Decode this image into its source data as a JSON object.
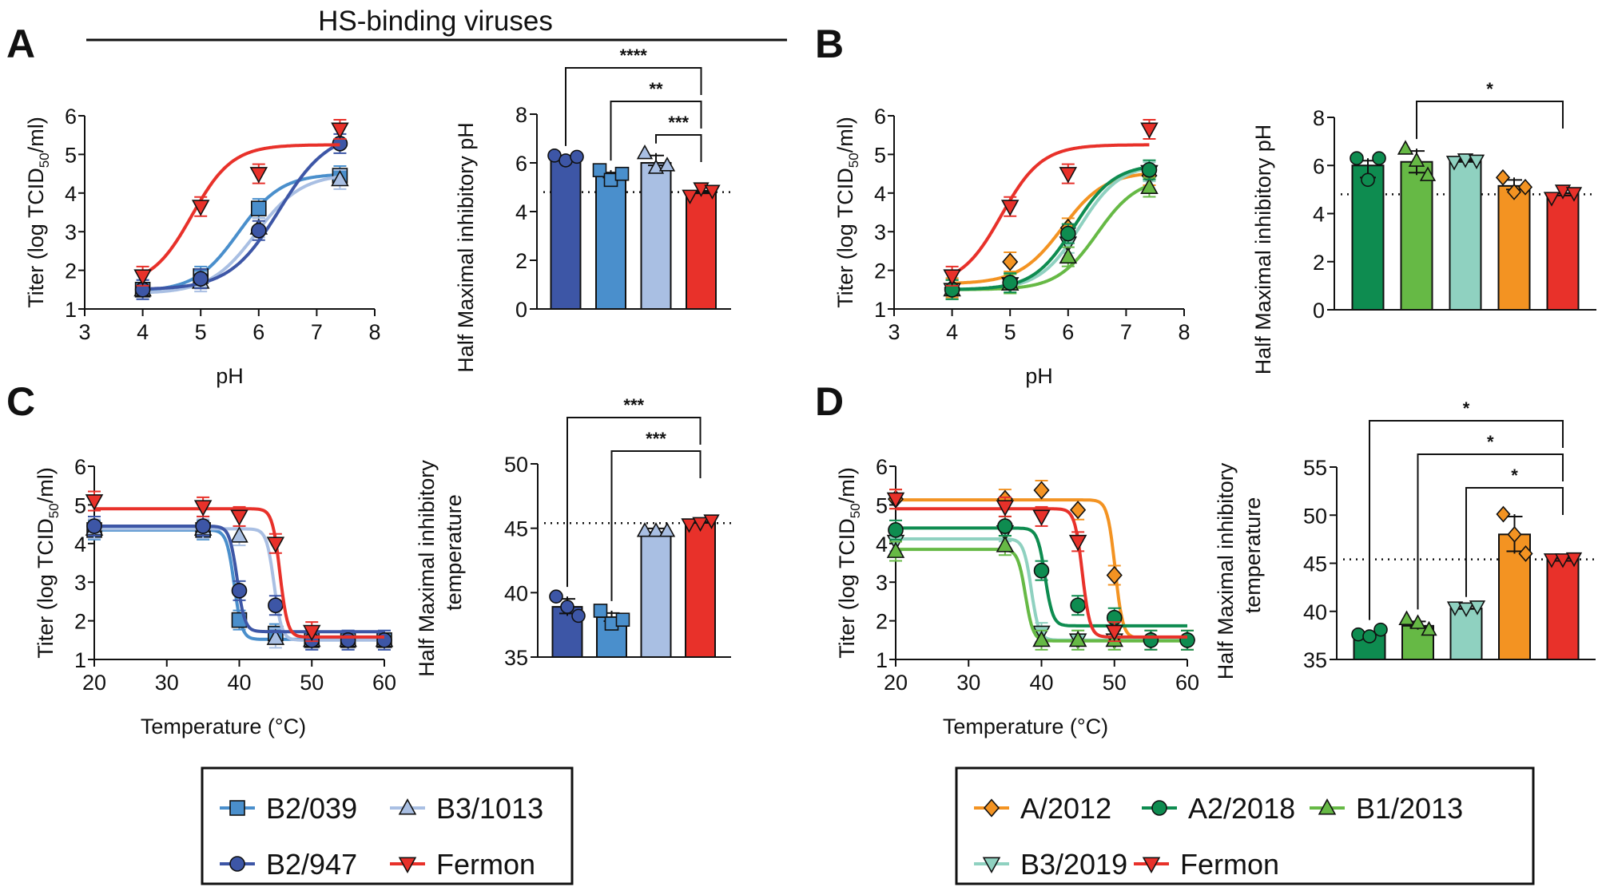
{
  "header": {
    "title": "HS-binding viruses"
  },
  "colors": {
    "B2/039": "#4a8fcc",
    "B3/1013": "#a9bfe3",
    "B2/947": "#3d56a6",
    "Fermon": "#e8312a",
    "A/2012": "#f39322",
    "A2/2018": "#0e8c50",
    "B1/2013": "#66b945",
    "B3/2019": "#8fd1c0"
  },
  "legends": {
    "left": [
      {
        "name": "B2/039",
        "marker": "square"
      },
      {
        "name": "B3/1013",
        "marker": "triangle-up"
      },
      {
        "name": "B2/947",
        "marker": "circle"
      },
      {
        "name": "Fermon",
        "marker": "triangle-down"
      }
    ],
    "right": [
      {
        "name": "A/2012",
        "marker": "diamond"
      },
      {
        "name": "A2/2018",
        "marker": "circle"
      },
      {
        "name": "B1/2013",
        "marker": "triangle-up"
      },
      {
        "name": "B3/2019",
        "marker": "triangle-down"
      },
      {
        "name": "Fermon",
        "marker": "triangle-down"
      }
    ]
  },
  "chart_data": [
    {
      "panel": "A",
      "id": "A-line",
      "type": "line",
      "xlabel": "pH",
      "ylabel": "Titer (log TCID50/ml)",
      "xlim": [
        3,
        8
      ],
      "ylim": [
        1,
        6
      ],
      "xticks": [
        3,
        4,
        5,
        6,
        7,
        8
      ],
      "yticks": [
        1,
        2,
        3,
        4,
        5,
        6
      ],
      "series": [
        {
          "name": "B2/039",
          "marker": "square",
          "x": [
            4,
            5,
            6,
            7.4
          ],
          "y": [
            1.5,
            1.85,
            3.6,
            4.45
          ],
          "fit": {
            "bottom": 1.45,
            "top": 4.5,
            "mid": 5.65,
            "slope": 1.5
          }
        },
        {
          "name": "B3/1013",
          "marker": "triangle-up",
          "x": [
            4,
            5,
            6,
            7.4
          ],
          "y": [
            1.5,
            1.7,
            3.1,
            4.35
          ],
          "fit": {
            "bottom": 1.4,
            "top": 4.5,
            "mid": 5.95,
            "slope": 1.4
          }
        },
        {
          "name": "B2/947",
          "marker": "circle",
          "x": [
            4,
            5,
            6,
            7.4
          ],
          "y": [
            1.5,
            1.78,
            3.03,
            5.28
          ],
          "fit": {
            "bottom": 1.5,
            "top": 5.6,
            "mid": 6.35,
            "slope": 1.3
          }
        },
        {
          "name": "Fermon",
          "marker": "triangle-down",
          "x": [
            4,
            5,
            6,
            7.4
          ],
          "y": [
            1.85,
            3.65,
            4.5,
            5.65
          ],
          "fit": {
            "bottom": 1.6,
            "top": 5.25,
            "mid": 4.85,
            "slope": 1.6
          }
        }
      ]
    },
    {
      "panel": "A",
      "id": "A-bar",
      "type": "bar",
      "ylabel": "Half Maximal inhibitory pH",
      "ylim": [
        0,
        8
      ],
      "yticks": [
        0,
        2,
        4,
        6,
        8
      ],
      "categories": [
        "B2/947",
        "B2/039",
        "B3/1013",
        "Fermon"
      ],
      "values": [
        6.2,
        5.5,
        6.0,
        4.8
      ],
      "points": [
        [
          6.3,
          6.1,
          6.25
        ],
        [
          5.7,
          5.3,
          5.55
        ],
        [
          6.4,
          5.8,
          5.9
        ],
        [
          4.65,
          4.95,
          4.85
        ]
      ],
      "reference_line": 4.8,
      "significance": [
        {
          "from": 0,
          "to": 3,
          "label": "****"
        },
        {
          "from": 1,
          "to": 3,
          "label": "**"
        },
        {
          "from": 2,
          "to": 3,
          "label": "***"
        }
      ]
    },
    {
      "panel": "B",
      "id": "B-line",
      "type": "line",
      "xlabel": "pH",
      "ylabel": "Titer (log TCID50/ml)",
      "xlim": [
        3,
        8
      ],
      "ylim": [
        1,
        6
      ],
      "xticks": [
        3,
        4,
        5,
        6,
        7,
        8
      ],
      "yticks": [
        1,
        2,
        3,
        4,
        5,
        6
      ],
      "series": [
        {
          "name": "A/2012",
          "marker": "diamond",
          "x": [
            4,
            5,
            6,
            7.4
          ],
          "y": [
            1.55,
            2.22,
            3.1,
            4.45
          ],
          "fit": {
            "bottom": 1.65,
            "top": 4.55,
            "mid": 5.9,
            "slope": 1.5
          }
        },
        {
          "name": "B3/2019",
          "marker": "triangle-down",
          "x": [
            4,
            5,
            6,
            7.4
          ],
          "y": [
            1.5,
            1.65,
            2.7,
            4.55
          ],
          "fit": {
            "bottom": 1.5,
            "top": 4.75,
            "mid": 6.2,
            "slope": 1.6
          }
        },
        {
          "name": "B1/2013",
          "marker": "triangle-up",
          "x": [
            4,
            5,
            6,
            7.4
          ],
          "y": [
            1.5,
            1.65,
            2.35,
            4.15
          ],
          "fit": {
            "bottom": 1.5,
            "top": 4.4,
            "mid": 6.5,
            "slope": 1.6
          }
        },
        {
          "name": "A2/2018",
          "marker": "circle",
          "x": [
            4,
            5,
            6,
            7.4
          ],
          "y": [
            1.5,
            1.68,
            2.95,
            4.6
          ],
          "fit": {
            "bottom": 1.5,
            "top": 4.75,
            "mid": 6.1,
            "slope": 1.6
          }
        },
        {
          "name": "Fermon",
          "marker": "triangle-down",
          "x": [
            4,
            5,
            6,
            7.4
          ],
          "y": [
            1.85,
            3.65,
            4.5,
            5.65
          ],
          "fit": {
            "bottom": 1.6,
            "top": 5.25,
            "mid": 4.85,
            "slope": 1.6
          }
        }
      ]
    },
    {
      "panel": "B",
      "id": "B-bar",
      "type": "bar",
      "ylabel": "Half Maximal inhibitory pH",
      "ylim": [
        0,
        8
      ],
      "yticks": [
        0,
        2,
        4,
        6,
        8
      ],
      "categories": [
        "A2/2018",
        "B1/2013",
        "B3/2019",
        "A/2012",
        "Fermon"
      ],
      "values": [
        6.0,
        6.15,
        6.2,
        5.15,
        4.85
      ],
      "points": [
        [
          6.3,
          5.4,
          6.3
        ],
        [
          6.7,
          6.2,
          5.6
        ],
        [
          6.15,
          6.25,
          6.2
        ],
        [
          5.5,
          4.9,
          5.1
        ],
        [
          4.65,
          4.95,
          4.85
        ]
      ],
      "reference_line": 4.8,
      "significance": [
        {
          "from": 1,
          "to": 4,
          "label": "*"
        }
      ]
    },
    {
      "panel": "C",
      "id": "C-line",
      "type": "line",
      "xlabel": "Temperature (°C)",
      "ylabel": "Titer (log TCID50/ml)",
      "xlim": [
        20,
        60
      ],
      "ylim": [
        1,
        6
      ],
      "xticks": [
        20,
        30,
        40,
        50,
        60
      ],
      "yticks": [
        1,
        2,
        3,
        4,
        5,
        6
      ],
      "series": [
        {
          "name": "B2/039",
          "marker": "square",
          "x": [
            20,
            35,
            40,
            45,
            50,
            55,
            60
          ],
          "y": [
            4.35,
            4.35,
            2.02,
            1.67,
            1.5,
            1.5,
            1.5
          ],
          "fit": {
            "top": 4.35,
            "bottom": 1.52,
            "mid": 39.3,
            "slope": -1.6
          }
        },
        {
          "name": "B3/1013",
          "marker": "triangle-up",
          "x": [
            20,
            35,
            40,
            45,
            50,
            55,
            60
          ],
          "y": [
            4.38,
            4.38,
            4.2,
            1.55,
            1.5,
            1.5,
            1.5
          ],
          "fit": {
            "top": 4.38,
            "bottom": 1.5,
            "mid": 44.8,
            "slope": -1.6
          }
        },
        {
          "name": "B2/947",
          "marker": "circle",
          "x": [
            20,
            35,
            40,
            45,
            50,
            55,
            60
          ],
          "y": [
            4.45,
            4.45,
            2.78,
            2.4,
            1.5,
            1.5,
            1.5
          ],
          "fit": {
            "top": 4.45,
            "bottom": 1.72,
            "mid": 39.7,
            "slope": -1.6
          }
        },
        {
          "name": "Fermon",
          "marker": "triangle-down",
          "x": [
            20,
            35,
            40,
            45,
            50
          ],
          "y": [
            5.1,
            4.95,
            4.7,
            4.0,
            1.72
          ],
          "fit": {
            "top": 4.9,
            "bottom": 1.58,
            "mid": 45.6,
            "slope": -1.6
          }
        }
      ]
    },
    {
      "panel": "C",
      "id": "C-bar",
      "type": "bar",
      "ylabel": "Half Maximal inhibitory temperature",
      "ylim": [
        35,
        50
      ],
      "yticks": [
        35,
        40,
        45,
        50
      ],
      "categories": [
        "B2/947",
        "B2/039",
        "B3/1013",
        "Fermon"
      ],
      "values": [
        38.9,
        38.1,
        44.7,
        45.5
      ],
      "points": [
        [
          39.7,
          38.9,
          38.2
        ],
        [
          38.6,
          37.6,
          37.9
        ],
        [
          44.8,
          44.8,
          44.8
        ],
        [
          45.3,
          45.4,
          45.6
        ]
      ],
      "reference_line": 45.4,
      "significance": [
        {
          "from": 0,
          "to": 3,
          "label": "***"
        },
        {
          "from": 1,
          "to": 3,
          "label": "***"
        }
      ]
    },
    {
      "panel": "D",
      "id": "D-line",
      "type": "line",
      "xlabel": "Temperature (°C)",
      "ylabel": "Titer (log TCID50/ml)",
      "xlim": [
        20,
        60
      ],
      "ylim": [
        1,
        6
      ],
      "xticks": [
        20,
        30,
        40,
        50,
        60
      ],
      "yticks": [
        1,
        2,
        3,
        4,
        5,
        6
      ],
      "series": [
        {
          "name": "A/2012",
          "marker": "diamond",
          "x": [
            20,
            35,
            40,
            45,
            50,
            55,
            60
          ],
          "y": [
            5.15,
            5.15,
            5.38,
            4.87,
            3.18,
            1.5,
            1.5
          ],
          "fit": {
            "top": 5.13,
            "bottom": 1.55,
            "mid": 50.1,
            "slope": -1.6
          }
        },
        {
          "name": "B3/2019",
          "marker": "triangle-down",
          "x": [
            20,
            35,
            40,
            45,
            50
          ],
          "y": [
            4.05,
            4.3,
            1.7,
            1.5,
            1.5
          ],
          "fit": {
            "top": 4.12,
            "bottom": 1.5,
            "mid": 38.6,
            "slope": -1.6
          }
        },
        {
          "name": "B1/2013",
          "marker": "triangle-up",
          "x": [
            20,
            35,
            40,
            45,
            50
          ],
          "y": [
            3.8,
            3.95,
            1.5,
            1.5,
            1.5
          ],
          "fit": {
            "top": 3.85,
            "bottom": 1.48,
            "mid": 37.8,
            "slope": -1.6
          }
        },
        {
          "name": "A2/2018",
          "marker": "circle",
          "x": [
            20,
            35,
            40,
            45,
            50,
            55,
            60
          ],
          "y": [
            4.35,
            4.45,
            3.3,
            2.4,
            2.08,
            1.5,
            1.5
          ],
          "fit": {
            "top": 4.4,
            "bottom": 1.87,
            "mid": 40.5,
            "slope": -1.6
          }
        },
        {
          "name": "Fermon",
          "marker": "triangle-down",
          "x": [
            20,
            35,
            40,
            45,
            50
          ],
          "y": [
            5.15,
            4.95,
            4.7,
            4.05,
            1.72
          ],
          "fit": {
            "top": 4.9,
            "bottom": 1.58,
            "mid": 45.6,
            "slope": -1.6
          }
        }
      ]
    },
    {
      "panel": "D",
      "id": "D-bar",
      "type": "bar",
      "ylabel": "Half Maximal inhibitory temperature",
      "ylim": [
        35,
        55
      ],
      "yticks": [
        35,
        40,
        45,
        50,
        55
      ],
      "categories": [
        "A2/2018",
        "B1/2013",
        "B3/2019",
        "A/2012",
        "Fermon"
      ],
      "values": [
        37.7,
        38.5,
        40.3,
        48.0,
        45.5
      ],
      "points": [
        [
          37.6,
          37.4,
          38.1
        ],
        [
          39.2,
          38.8,
          38.1
        ],
        [
          40.4,
          40.3,
          40.5
        ],
        [
          50.1,
          48.0,
          46.0
        ],
        [
          45.4,
          45.4,
          45.5
        ]
      ],
      "reference_line": 45.4,
      "significance": [
        {
          "from": 0,
          "to": 4,
          "label": "*"
        },
        {
          "from": 1,
          "to": 4,
          "label": "*"
        },
        {
          "from": 2,
          "to": 4,
          "label": "*"
        }
      ]
    }
  ]
}
